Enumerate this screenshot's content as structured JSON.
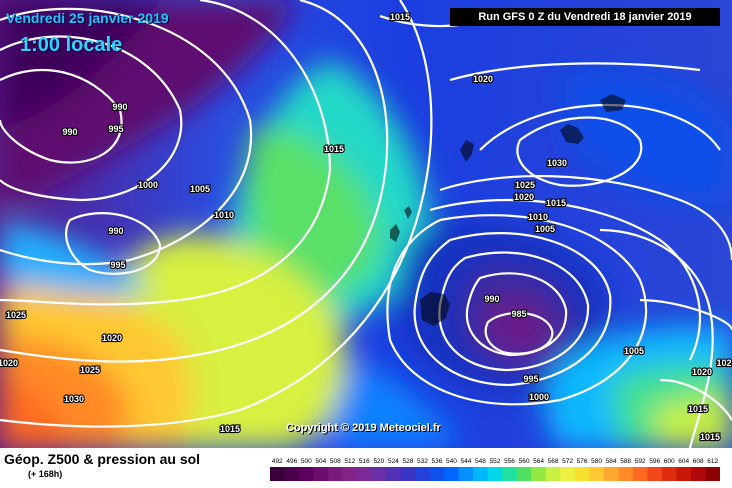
{
  "header": {
    "date": "Vendredi 25 janvier 2019",
    "local_time": "1:00 locale",
    "run": "Run GFS 0 Z du Vendredi 18 janvier 2019"
  },
  "copyright": "Copyright © 2019 Meteociel.fr",
  "footer": {
    "title": "Géop. Z500 & pression au sol",
    "subtitle": "(+ 168h)"
  },
  "scale": {
    "values": [
      "492",
      "496",
      "500",
      "504",
      "508",
      "512",
      "516",
      "520",
      "524",
      "528",
      "532",
      "536",
      "540",
      "544",
      "548",
      "552",
      "556",
      "560",
      "564",
      "568",
      "572",
      "576",
      "580",
      "584",
      "588",
      "592",
      "596",
      "600",
      "604",
      "608",
      "612"
    ],
    "colors": [
      "#3a003a",
      "#4b004b",
      "#5e005e",
      "#6e0c6e",
      "#7a1a7a",
      "#84248a",
      "#7a2a96",
      "#6a2ea6",
      "#5030b4",
      "#3a34c6",
      "#2540d8",
      "#1050ea",
      "#0066ff",
      "#0090ff",
      "#00b8ff",
      "#00d8e8",
      "#20e0a0",
      "#50e060",
      "#90e840",
      "#c8f040",
      "#f0f040",
      "#f8e030",
      "#ffc830",
      "#ffa830",
      "#ff8a28",
      "#ff6a20",
      "#f04818",
      "#e02c10",
      "#c81808",
      "#b00808",
      "#900000"
    ]
  },
  "isobar_labels": [
    {
      "text": "1015",
      "name": "isobar-label-1015-top"
    },
    {
      "text": "990",
      "name": "isobar-label-990-nw"
    },
    {
      "text": "990",
      "name": "isobar-label-990-nw2"
    },
    {
      "text": "995",
      "name": "isobar-label-995-nw"
    },
    {
      "text": "1000",
      "name": "isobar-label-1000-nw"
    },
    {
      "text": "1005",
      "name": "isobar-label-1005-nw"
    },
    {
      "text": "1010",
      "name": "isobar-label-1010-w"
    },
    {
      "text": "1015",
      "name": "isobar-label-1015-n"
    },
    {
      "text": "1020",
      "name": "isobar-label-1020-ne"
    },
    {
      "text": "1030",
      "name": "isobar-label-1030-ne"
    },
    {
      "text": "1025",
      "name": "isobar-label-1025-c"
    },
    {
      "text": "1020",
      "name": "isobar-label-1020-c"
    },
    {
      "text": "1015",
      "name": "isobar-label-1015-c"
    },
    {
      "text": "1010",
      "name": "isobar-label-1010-c"
    },
    {
      "text": "1005",
      "name": "isobar-label-1005-c"
    },
    {
      "text": "990",
      "name": "isobar-label-990-low-w"
    },
    {
      "text": "995",
      "name": "isobar-label-995-low-w"
    },
    {
      "text": "1025",
      "name": "isobar-label-1025-w"
    },
    {
      "text": "1020",
      "name": "isobar-label-1020-sw"
    },
    {
      "text": "1020",
      "name": "isobar-label-1020-far-w"
    },
    {
      "text": "1025",
      "name": "isobar-label-1025-sw"
    },
    {
      "text": "1030",
      "name": "isobar-label-1030-sw"
    },
    {
      "text": "990",
      "name": "isobar-label-990-low-e"
    },
    {
      "text": "985",
      "name": "isobar-label-985-low-e"
    },
    {
      "text": "995",
      "name": "isobar-label-995-low-e"
    },
    {
      "text": "1000",
      "name": "isobar-label-1000-s"
    },
    {
      "text": "1015",
      "name": "isobar-label-1015-s"
    },
    {
      "text": "1005",
      "name": "isobar-label-1005-se"
    },
    {
      "text": "1020",
      "name": "isobar-label-1020-se"
    },
    {
      "text": "1015",
      "name": "isobar-label-1015-se"
    },
    {
      "text": "1015",
      "name": "isobar-label-1015-se2"
    },
    {
      "text": "102",
      "name": "isobar-label-102-e"
    }
  ]
}
